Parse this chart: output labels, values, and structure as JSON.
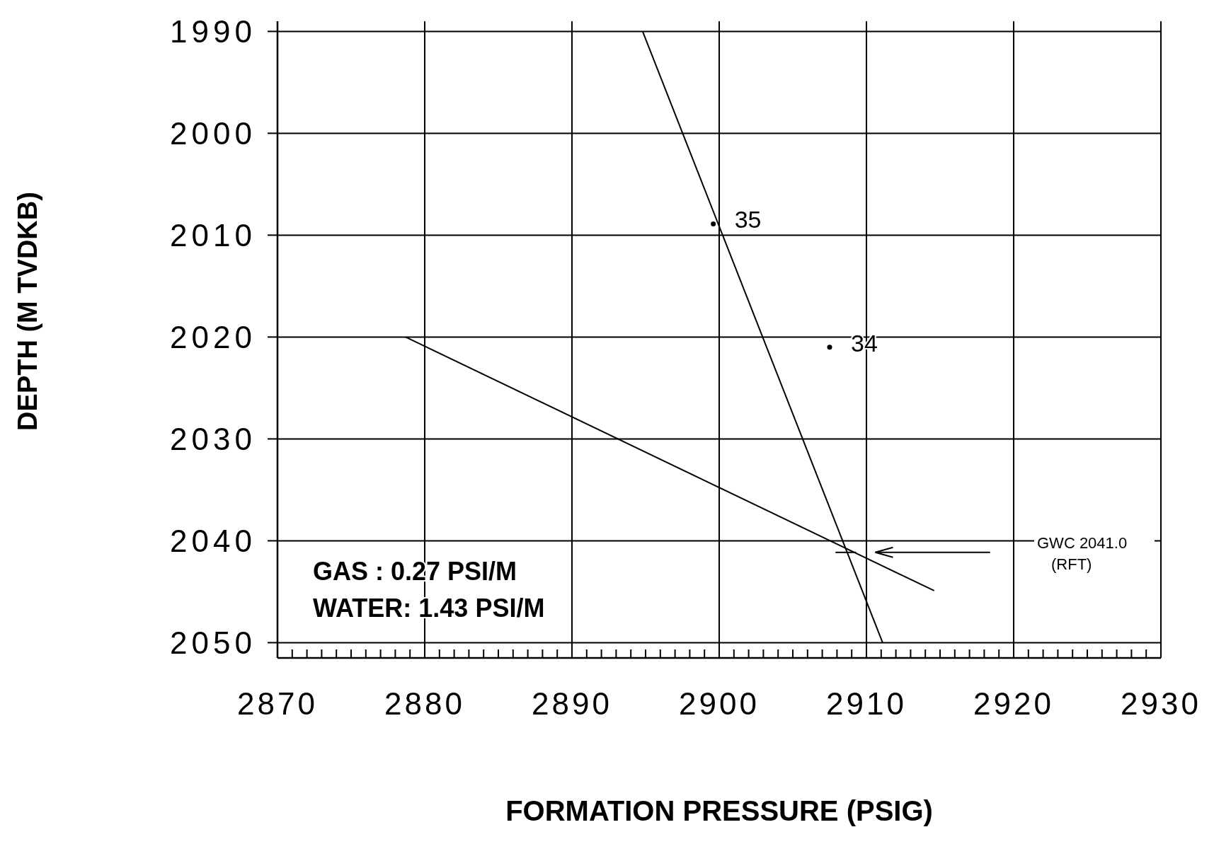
{
  "chart_data": {
    "type": "line",
    "xlabel": "FORMATION PRESSURE (PSIG)",
    "ylabel": "DEPTH (M TVDKB)",
    "xlim": [
      2870,
      2930
    ],
    "ylim": [
      2051.5,
      1989
    ],
    "xticks": [
      2870,
      {
        "value": 2871,
        "label": null
      },
      {
        "value": 2872,
        "label": null
      },
      {
        "value": 2873,
        "label": null
      },
      {
        "value": 2874,
        "label": null
      },
      {
        "value": 2875,
        "label": null
      },
      {
        "value": 2876,
        "label": null
      },
      {
        "value": 2877,
        "label": null
      },
      {
        "value": 2878,
        "label": null
      },
      {
        "value": 2879,
        "label": null
      },
      2880,
      {
        "value": 2881,
        "label": null
      },
      {
        "value": 2882,
        "label": null
      },
      {
        "value": 2883,
        "label": null
      },
      {
        "value": 2884,
        "label": null
      },
      {
        "value": 2885,
        "label": null
      },
      {
        "value": 2886,
        "label": null
      },
      {
        "value": 2887,
        "label": null
      },
      {
        "value": 2888,
        "label": null
      },
      {
        "value": 2889,
        "label": null
      },
      2890,
      {
        "value": 2891,
        "label": null
      },
      {
        "value": 2892,
        "label": null
      },
      {
        "value": 2893,
        "label": null
      },
      {
        "value": 2894,
        "label": null
      },
      {
        "value": 2895,
        "label": null
      },
      {
        "value": 2896,
        "label": null
      },
      {
        "value": 2897,
        "label": null
      },
      {
        "value": 2898,
        "label": null
      },
      {
        "value": 2899,
        "label": null
      },
      2900,
      {
        "value": 2901,
        "label": null
      },
      {
        "value": 2902,
        "label": null
      },
      {
        "value": 2903,
        "label": null
      },
      {
        "value": 2904,
        "label": null
      },
      {
        "value": 2905,
        "label": null
      },
      {
        "value": 2906,
        "label": null
      },
      {
        "value": 2907,
        "label": null
      },
      {
        "value": 2908,
        "label": null
      },
      {
        "value": 2909,
        "label": null
      },
      2910,
      {
        "value": 2911,
        "label": null
      },
      {
        "value": 2912,
        "label": null
      },
      {
        "value": 2913,
        "label": null
      },
      {
        "value": 2914,
        "label": null
      },
      {
        "value": 2915,
        "label": null
      },
      {
        "value": 2916,
        "label": null
      },
      {
        "value": 2917,
        "label": null
      },
      {
        "value": 2918,
        "label": null
      },
      {
        "value": 2919,
        "label": null
      },
      2920,
      {
        "value": 2921,
        "label": null
      },
      {
        "value": 2922,
        "label": null
      },
      {
        "value": 2923,
        "label": null
      },
      {
        "value": 2924,
        "label": null
      },
      {
        "value": 2925,
        "label": null
      },
      {
        "value": 2926,
        "label": null
      },
      {
        "value": 2927,
        "label": null
      },
      {
        "value": 2928,
        "label": null
      },
      {
        "value": 2929,
        "label": null
      },
      2930
    ],
    "yticks": [
      1990,
      2000,
      2010,
      2020,
      2030,
      2040,
      2050
    ],
    "grid": true,
    "series": [
      {
        "color": "#000000",
        "marker": "none",
        "x": [
          2894.8,
          2911.1
        ],
        "values": [
          1990,
          2050
        ]
      },
      {
        "color": "#000000",
        "marker": "none",
        "x": [
          2878.7,
          2914.6
        ],
        "values": [
          2020,
          2044.9
        ]
      },
      {
        "type": "scatter",
        "color": "#000000",
        "marker": "circle",
        "x": [
          2899.6,
          2907.5
        ],
        "values": [
          2008.9,
          2021
        ]
      }
    ],
    "annotations": [
      "GAS  : 0.27 PSI/M",
      "WATER: 1.43 PSI/M",
      {
        "text": "35",
        "x": 2899.6,
        "y": 2008.9
      },
      {
        "text": "34",
        "x": 2907.5,
        "y": 2021
      },
      "GWC 2041.0 (RFT)"
    ]
  }
}
